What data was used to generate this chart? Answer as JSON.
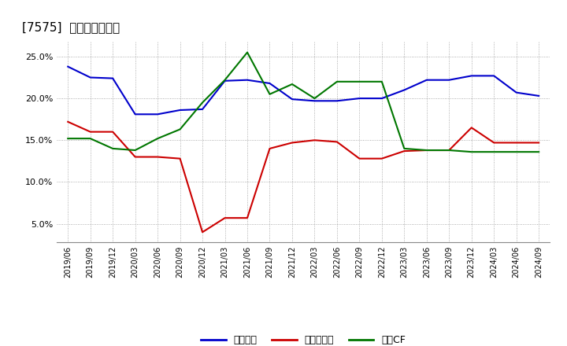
{
  "title": "[7575]  マージンの推移",
  "legend_labels": [
    "経常利益",
    "当期純利益",
    "営業CF"
  ],
  "legend_colors": [
    "#0000cc",
    "#cc0000",
    "#007700"
  ],
  "background_color": "#ffffff",
  "plot_bg_color": "#ffffff",
  "grid_color": "#999999",
  "ylim": [
    0.028,
    0.268
  ],
  "yticks": [
    0.05,
    0.1,
    0.15,
    0.2,
    0.25
  ],
  "x_labels": [
    "2019/06",
    "2019/09",
    "2019/12",
    "2020/03",
    "2020/06",
    "2020/09",
    "2020/12",
    "2021/03",
    "2021/06",
    "2021/09",
    "2021/12",
    "2022/03",
    "2022/06",
    "2022/09",
    "2022/12",
    "2023/03",
    "2023/06",
    "2023/09",
    "2023/12",
    "2024/03",
    "2024/06",
    "2024/09"
  ],
  "blue_line": [
    0.238,
    0.225,
    0.224,
    0.181,
    0.181,
    0.186,
    0.187,
    0.221,
    0.222,
    0.218,
    0.199,
    0.197,
    0.197,
    0.2,
    0.2,
    0.21,
    0.222,
    0.222,
    0.227,
    0.227,
    0.207,
    0.203
  ],
  "red_line": [
    0.172,
    0.16,
    0.16,
    0.13,
    0.13,
    0.128,
    0.04,
    0.057,
    0.057,
    0.14,
    0.147,
    0.15,
    0.148,
    0.128,
    0.128,
    0.137,
    0.138,
    0.138,
    0.165,
    0.147,
    0.147,
    0.147
  ],
  "green_line": [
    0.152,
    0.152,
    0.14,
    0.138,
    0.152,
    0.163,
    0.195,
    0.222,
    0.255,
    0.205,
    0.217,
    0.2,
    0.22,
    0.22,
    0.22,
    0.14,
    0.138,
    0.138,
    0.136,
    0.136,
    0.136,
    0.136
  ]
}
